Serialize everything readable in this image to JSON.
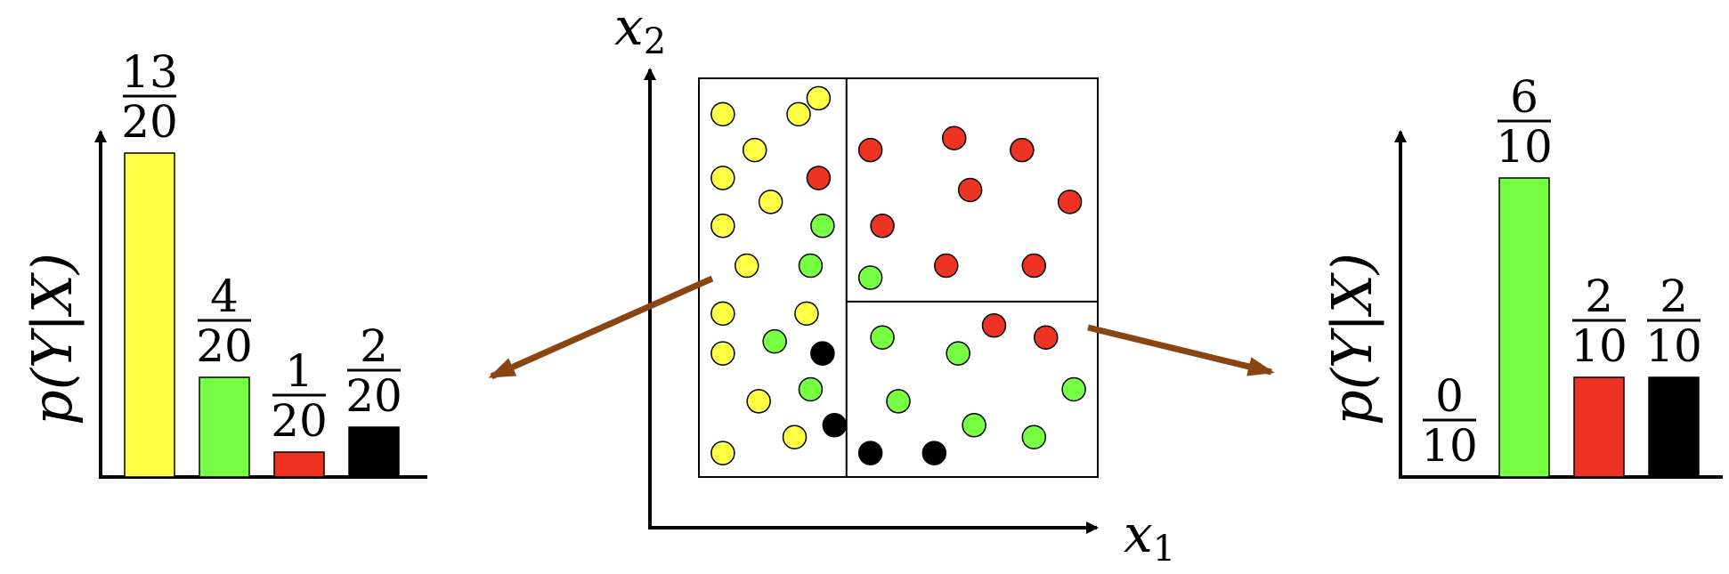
{
  "colors": {
    "yellow": "#ffff44",
    "green": "#77ff44",
    "red": "#ee3322",
    "black": "#000000",
    "arrow": "#8b4513"
  },
  "left_chart": {
    "ylabel": "p(Y|X)",
    "bars": [
      {
        "class": "yellow",
        "num": "13",
        "den": "20",
        "value": 0.65
      },
      {
        "class": "green",
        "num": "4",
        "den": "20",
        "value": 0.2
      },
      {
        "class": "red",
        "num": "1",
        "den": "20",
        "value": 0.05
      },
      {
        "class": "black",
        "num": "2",
        "den": "20",
        "value": 0.1
      }
    ]
  },
  "right_chart": {
    "ylabel": "p(Y|X)",
    "bars": [
      {
        "class": "yellow",
        "num": "0",
        "den": "10",
        "value": 0.0
      },
      {
        "class": "green",
        "num": "6",
        "den": "10",
        "value": 0.6
      },
      {
        "class": "red",
        "num": "2",
        "den": "10",
        "value": 0.2
      },
      {
        "class": "black",
        "num": "2",
        "den": "10",
        "value": 0.2
      }
    ]
  },
  "scatter": {
    "xlabel": "x",
    "xlabel_sub": "1",
    "ylabel": "x",
    "ylabel_sub": "2",
    "points": [
      {
        "x": 0.06,
        "y": 0.91,
        "c": "yellow"
      },
      {
        "x": 0.25,
        "y": 0.91,
        "c": "yellow"
      },
      {
        "x": 0.14,
        "y": 0.82,
        "c": "yellow"
      },
      {
        "x": 0.06,
        "y": 0.75,
        "c": "yellow"
      },
      {
        "x": 0.18,
        "y": 0.69,
        "c": "yellow"
      },
      {
        "x": 0.06,
        "y": 0.63,
        "c": "yellow"
      },
      {
        "x": 0.12,
        "y": 0.53,
        "c": "yellow"
      },
      {
        "x": 0.06,
        "y": 0.41,
        "c": "yellow"
      },
      {
        "x": 0.27,
        "y": 0.41,
        "c": "yellow"
      },
      {
        "x": 0.06,
        "y": 0.31,
        "c": "yellow"
      },
      {
        "x": 0.15,
        "y": 0.19,
        "c": "yellow"
      },
      {
        "x": 0.24,
        "y": 0.1,
        "c": "yellow"
      },
      {
        "x": 0.06,
        "y": 0.06,
        "c": "yellow"
      },
      {
        "x": 0.3,
        "y": 0.95,
        "c": "yellow"
      },
      {
        "x": 0.3,
        "y": 0.75,
        "c": "red"
      },
      {
        "x": 0.43,
        "y": 0.82,
        "c": "red"
      },
      {
        "x": 0.64,
        "y": 0.85,
        "c": "red"
      },
      {
        "x": 0.81,
        "y": 0.82,
        "c": "red"
      },
      {
        "x": 0.68,
        "y": 0.72,
        "c": "red"
      },
      {
        "x": 0.93,
        "y": 0.69,
        "c": "red"
      },
      {
        "x": 0.46,
        "y": 0.63,
        "c": "red"
      },
      {
        "x": 0.62,
        "y": 0.53,
        "c": "red"
      },
      {
        "x": 0.84,
        "y": 0.53,
        "c": "red"
      },
      {
        "x": 0.74,
        "y": 0.38,
        "c": "red"
      },
      {
        "x": 0.87,
        "y": 0.35,
        "c": "red"
      },
      {
        "x": 0.31,
        "y": 0.63,
        "c": "green"
      },
      {
        "x": 0.28,
        "y": 0.53,
        "c": "green"
      },
      {
        "x": 0.43,
        "y": 0.5,
        "c": "green"
      },
      {
        "x": 0.19,
        "y": 0.34,
        "c": "green"
      },
      {
        "x": 0.28,
        "y": 0.22,
        "c": "green"
      },
      {
        "x": 0.46,
        "y": 0.35,
        "c": "green"
      },
      {
        "x": 0.65,
        "y": 0.31,
        "c": "green"
      },
      {
        "x": 0.5,
        "y": 0.19,
        "c": "green"
      },
      {
        "x": 0.94,
        "y": 0.22,
        "c": "green"
      },
      {
        "x": 0.69,
        "y": 0.13,
        "c": "green"
      },
      {
        "x": 0.84,
        "y": 0.1,
        "c": "green"
      },
      {
        "x": 0.31,
        "y": 0.31,
        "c": "black"
      },
      {
        "x": 0.34,
        "y": 0.13,
        "c": "black"
      },
      {
        "x": 0.43,
        "y": 0.06,
        "c": "black"
      },
      {
        "x": 0.59,
        "y": 0.06,
        "c": "black"
      }
    ],
    "split_x": 0.37,
    "split_y": 0.44
  }
}
